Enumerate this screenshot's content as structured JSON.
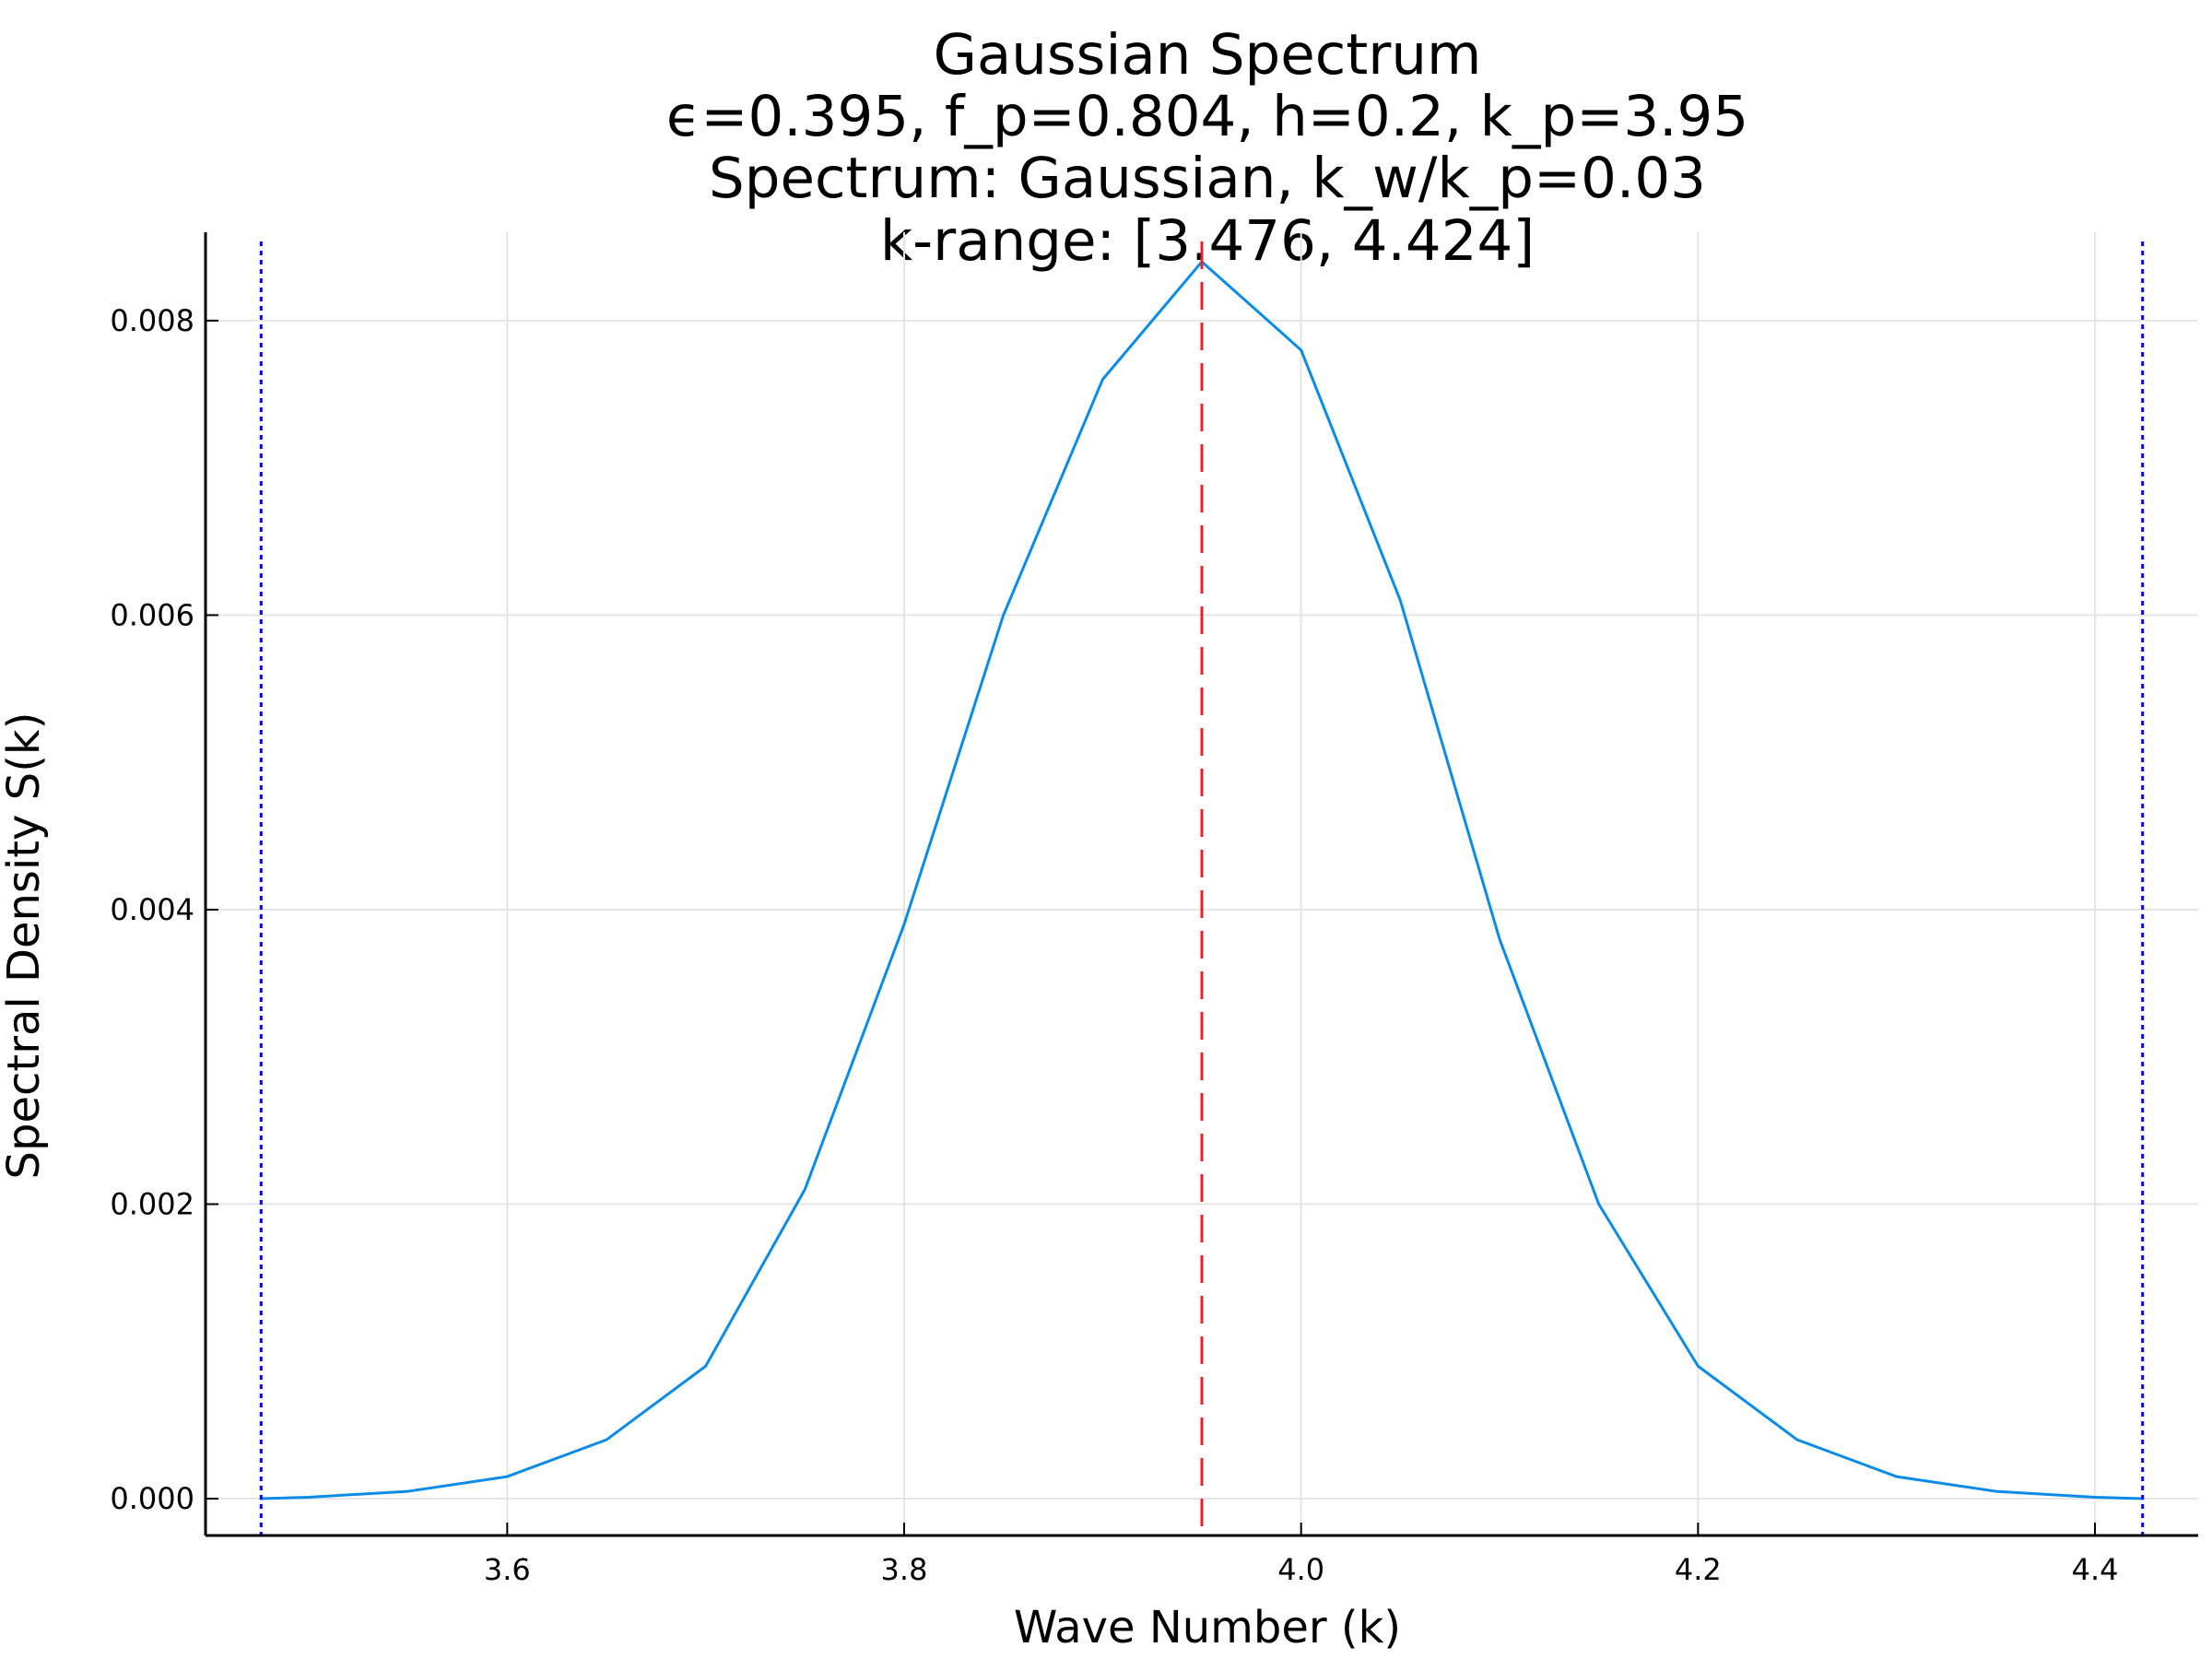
{
  "chart_data": {
    "type": "line",
    "title_lines": [
      "Gaussian Spectrum",
      "ϵ=0.395, f_p=0.804, h=0.2, k_p=3.95",
      "Spectrum: Gaussian, k_w/k_p=0.03",
      "k-range: [3.476, 4.424]"
    ],
    "xlabel": "Wave Number (k)",
    "ylabel": "Spectral Density S(k)",
    "xlim": [
      3.448,
      4.452
    ],
    "ylim": [
      -0.00025,
      0.0086
    ],
    "x_ticks": [
      {
        "value": 3.6,
        "label": "3.6"
      },
      {
        "value": 3.8,
        "label": "3.8"
      },
      {
        "value": 4.0,
        "label": "4.0"
      },
      {
        "value": 4.2,
        "label": "4.2"
      },
      {
        "value": 4.4,
        "label": "4.4"
      }
    ],
    "y_ticks": [
      {
        "value": 0.0,
        "label": "0.000"
      },
      {
        "value": 0.002,
        "label": "0.002"
      },
      {
        "value": 0.004,
        "label": "0.004"
      },
      {
        "value": 0.006,
        "label": "0.006"
      },
      {
        "value": 0.008,
        "label": "0.008"
      }
    ],
    "grid": true,
    "legend": false,
    "series": [
      {
        "color": "#0a8be6",
        "style": "solid",
        "x": [
          3.476,
          3.5,
          3.55,
          3.6,
          3.65,
          3.7,
          3.75,
          3.8,
          3.85,
          3.9,
          3.95,
          4.0,
          4.05,
          4.1,
          4.15,
          4.2,
          4.25,
          4.3,
          4.35,
          4.4,
          4.424
        ],
        "y": [
          0.0,
          1e-05,
          5e-05,
          0.00015,
          0.0004,
          0.0009,
          0.0021,
          0.0039,
          0.006,
          0.0076,
          0.0084,
          0.0078,
          0.0061,
          0.0038,
          0.002,
          0.0009,
          0.0004,
          0.00015,
          5e-05,
          1e-05,
          0.0
        ]
      }
    ],
    "reference_lines": [
      {
        "orientation": "vertical",
        "x": 3.95,
        "color": "#e8222b",
        "style": "dashed"
      },
      {
        "orientation": "vertical",
        "x": 3.476,
        "color": "#0000ff",
        "style": "dotted"
      },
      {
        "orientation": "vertical",
        "x": 4.424,
        "color": "#0000ff",
        "style": "dotted"
      }
    ],
    "colors": {
      "axis": "#000000",
      "grid": "#e5e5e5",
      "background": "#ffffff"
    }
  }
}
